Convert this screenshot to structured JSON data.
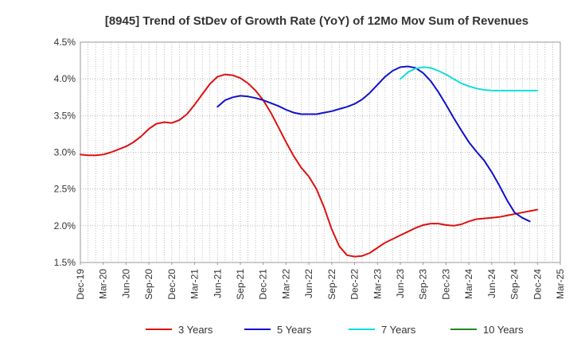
{
  "chart_data": {
    "type": "line",
    "title": "[8945]  Trend of StDev of Growth Rate (YoY) of 12Mo Mov Sum of Revenues",
    "xlabel": "",
    "ylabel": "",
    "ylim": [
      1.5,
      4.5
    ],
    "y_ticks": [
      "4.5%",
      "4.0%",
      "3.5%",
      "3.0%",
      "2.5%",
      "2.0%",
      "1.5%"
    ],
    "x_ticks": [
      "Dec-19",
      "Mar-20",
      "Jun-20",
      "Sep-20",
      "Dec-20",
      "Mar-21",
      "Jun-21",
      "Sep-21",
      "Dec-21",
      "Mar-22",
      "Jun-22",
      "Sep-22",
      "Dec-22",
      "Mar-23",
      "Jun-23",
      "Sep-23",
      "Dec-23",
      "Mar-24",
      "Jun-24",
      "Sep-24",
      "Dec-24",
      "Mar-25"
    ],
    "grid": "dotted",
    "legend_position": "bottom",
    "series": [
      {
        "name": "3 Years",
        "color": "#dd1111",
        "start_month": 0,
        "values": [
          2.97,
          2.96,
          2.96,
          2.97,
          3.0,
          3.04,
          3.08,
          3.14,
          3.22,
          3.32,
          3.39,
          3.41,
          3.4,
          3.44,
          3.52,
          3.65,
          3.79,
          3.93,
          4.03,
          4.06,
          4.05,
          4.01,
          3.94,
          3.84,
          3.71,
          3.54,
          3.34,
          3.14,
          2.95,
          2.79,
          2.67,
          2.5,
          2.25,
          1.95,
          1.72,
          1.6,
          1.58,
          1.59,
          1.63,
          1.7,
          1.77,
          1.82,
          1.87,
          1.92,
          1.97,
          2.01,
          2.03,
          2.03,
          2.01,
          2.0,
          2.02,
          2.06,
          2.09,
          2.1,
          2.11,
          2.12,
          2.14,
          2.16,
          2.18,
          2.2,
          2.22
        ]
      },
      {
        "name": "5 Years",
        "color": "#1111cc",
        "start_month": 18,
        "values": [
          3.62,
          3.71,
          3.75,
          3.77,
          3.76,
          3.74,
          3.71,
          3.67,
          3.63,
          3.58,
          3.54,
          3.52,
          3.52,
          3.52,
          3.54,
          3.56,
          3.59,
          3.62,
          3.66,
          3.72,
          3.81,
          3.92,
          4.03,
          4.11,
          4.16,
          4.17,
          4.15,
          4.08,
          3.97,
          3.82,
          3.65,
          3.47,
          3.3,
          3.14,
          3.01,
          2.89,
          2.73,
          2.55,
          2.35,
          2.18,
          2.11,
          2.06
        ]
      },
      {
        "name": "7 Years",
        "color": "#11dddd",
        "start_month": 42,
        "values": [
          4.0,
          4.09,
          4.14,
          4.16,
          4.15,
          4.11,
          4.06,
          4.0,
          3.94,
          3.9,
          3.87,
          3.85,
          3.84,
          3.84,
          3.84,
          3.84,
          3.84,
          3.84,
          3.84
        ]
      },
      {
        "name": "10 Years",
        "color": "#228822",
        "start_month": 0,
        "values": []
      }
    ]
  }
}
